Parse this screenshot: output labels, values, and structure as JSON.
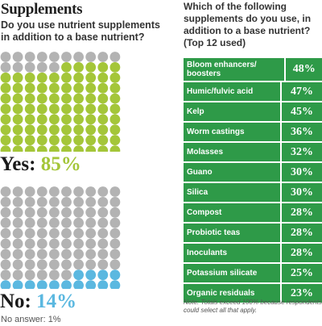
{
  "left": {
    "title": "Supplements",
    "question": "Do you use nutrient supplements in addition to a base nutrient?",
    "yes_label": "Yes:",
    "yes_pct": "85%",
    "no_label": "No:",
    "no_pct": "14%",
    "no_answer": "No answer: 1%"
  },
  "right": {
    "question": "Which of the following supplements do you use, in addition to a base nutrient? (Top 12 used)",
    "note": "Note: Totals exceed 100% because respondents could select all that apply."
  },
  "colors": {
    "yes_dot": "#a4c639",
    "no_dot": "#5bb8e0",
    "other_dot": "#b3b3b3",
    "table_bg": "#2e9a48"
  },
  "chart_data": [
    {
      "type": "waffle",
      "title": "Do you use nutrient supplements in addition to a base nutrient?",
      "total": 100,
      "series": [
        {
          "name": "Yes",
          "values": [
            85
          ]
        },
        {
          "name": "No",
          "values": [
            14
          ]
        },
        {
          "name": "No answer",
          "values": [
            1
          ]
        }
      ]
    },
    {
      "type": "table",
      "title": "Which of the following supplements do you use, in addition to a base nutrient? (Top 12 used)",
      "categories": [
        "Bloom enhancers/ boosters",
        "Humic/fulvic acid",
        "Kelp",
        "Worm castings",
        "Molasses",
        "Guano",
        "Silica",
        "Compost",
        "Probiotic teas",
        "Inoculants",
        "Potassium silicate",
        "Organic residuals"
      ],
      "values": [
        48,
        47,
        45,
        36,
        32,
        30,
        30,
        28,
        28,
        28,
        25,
        23
      ],
      "labels": [
        "48%",
        "47%",
        "45%",
        "36%",
        "32%",
        "30%",
        "30%",
        "28%",
        "28%",
        "28%",
        "25%",
        "23%"
      ]
    }
  ]
}
